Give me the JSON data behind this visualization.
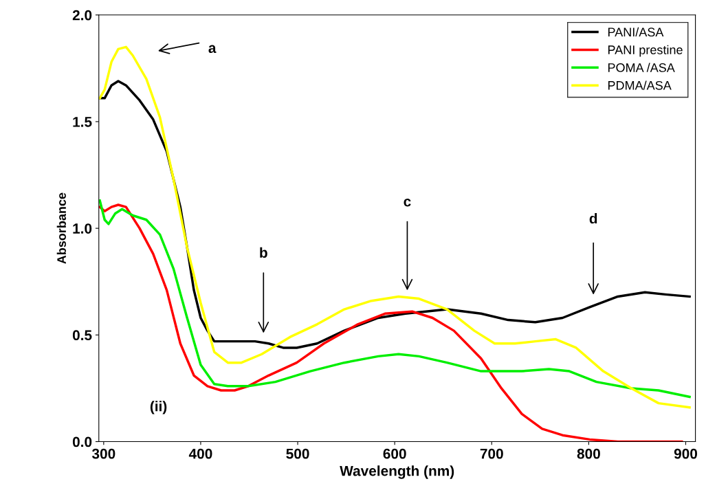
{
  "chart_data": {
    "type": "line",
    "xlabel": "Wavelength (nm)",
    "ylabel": "Absorbance",
    "xlim": [
      295,
      910
    ],
    "ylim": [
      0,
      2
    ],
    "xticks": [
      300,
      400,
      500,
      600,
      700,
      800,
      900
    ],
    "yticks": [
      {
        "value": 0,
        "label": "0.0"
      },
      {
        "value": 0.5,
        "label": "0.5"
      },
      {
        "value": 1,
        "label": "1.0"
      },
      {
        "value": 1.5,
        "label": "1.5"
      },
      {
        "value": 2,
        "label": "2.0"
      }
    ],
    "legend": "top right",
    "grid": false,
    "marker": "none",
    "line_style": "solid",
    "series": [
      {
        "name": "PANI/ASA",
        "color": "#000000",
        "x": [
          296,
          301,
          308,
          315,
          323,
          337,
          351,
          365,
          379,
          386,
          393,
          400,
          407,
          414,
          428,
          442,
          456,
          470,
          485,
          499,
          520,
          548,
          583,
          611,
          632,
          654,
          689,
          717,
          745,
          773,
          801,
          830,
          858,
          879,
          904
        ],
        "values": [
          1.61,
          1.61,
          1.67,
          1.69,
          1.67,
          1.6,
          1.51,
          1.36,
          1.1,
          0.91,
          0.71,
          0.58,
          0.52,
          0.47,
          0.47,
          0.47,
          0.47,
          0.46,
          0.44,
          0.44,
          0.46,
          0.52,
          0.58,
          0.6,
          0.61,
          0.62,
          0.6,
          0.57,
          0.56,
          0.58,
          0.63,
          0.68,
          0.7,
          0.69,
          0.68
        ]
      },
      {
        "name": "PANI prestine",
        "color": "#ff0000",
        "x": [
          296,
          301,
          308,
          315,
          323,
          337,
          351,
          365,
          379,
          393,
          407,
          421,
          435,
          449,
          470,
          499,
          527,
          562,
          590,
          618,
          639,
          661,
          689,
          710,
          731,
          752,
          773,
          801,
          830,
          896
        ],
        "values": [
          1.1,
          1.08,
          1.1,
          1.11,
          1.1,
          1.0,
          0.88,
          0.71,
          0.46,
          0.31,
          0.26,
          0.24,
          0.24,
          0.26,
          0.31,
          0.37,
          0.46,
          0.55,
          0.6,
          0.61,
          0.58,
          0.52,
          0.39,
          0.25,
          0.13,
          0.06,
          0.03,
          0.01,
          0.0,
          0.0
        ]
      },
      {
        "name": "POMA /ASA",
        "color": "#00ee00",
        "x": [
          296,
          301,
          305,
          312,
          319,
          330,
          344,
          358,
          372,
          386,
          400,
          414,
          428,
          449,
          477,
          513,
          548,
          583,
          604,
          625,
          654,
          689,
          731,
          759,
          780,
          808,
          844,
          872,
          904
        ],
        "values": [
          1.13,
          1.04,
          1.02,
          1.07,
          1.09,
          1.06,
          1.04,
          0.97,
          0.81,
          0.58,
          0.36,
          0.27,
          0.26,
          0.26,
          0.28,
          0.33,
          0.37,
          0.4,
          0.41,
          0.4,
          0.37,
          0.33,
          0.33,
          0.34,
          0.33,
          0.28,
          0.25,
          0.24,
          0.21
        ]
      },
      {
        "name": "PDMA/ASA",
        "color": "#ffff00",
        "x": [
          296,
          301,
          308,
          315,
          323,
          330,
          344,
          358,
          372,
          386,
          400,
          414,
          428,
          442,
          463,
          492,
          520,
          548,
          576,
          604,
          625,
          654,
          682,
          703,
          724,
          745,
          766,
          787,
          815,
          844,
          872,
          904
        ],
        "values": [
          1.61,
          1.65,
          1.78,
          1.84,
          1.85,
          1.81,
          1.7,
          1.52,
          1.23,
          0.91,
          0.65,
          0.42,
          0.37,
          0.37,
          0.41,
          0.49,
          0.55,
          0.62,
          0.66,
          0.68,
          0.67,
          0.62,
          0.52,
          0.46,
          0.46,
          0.47,
          0.48,
          0.44,
          0.33,
          0.25,
          0.18,
          0.16
        ]
      }
    ],
    "annotations": [
      "a",
      "b",
      "c",
      "d",
      "(ii)"
    ]
  }
}
